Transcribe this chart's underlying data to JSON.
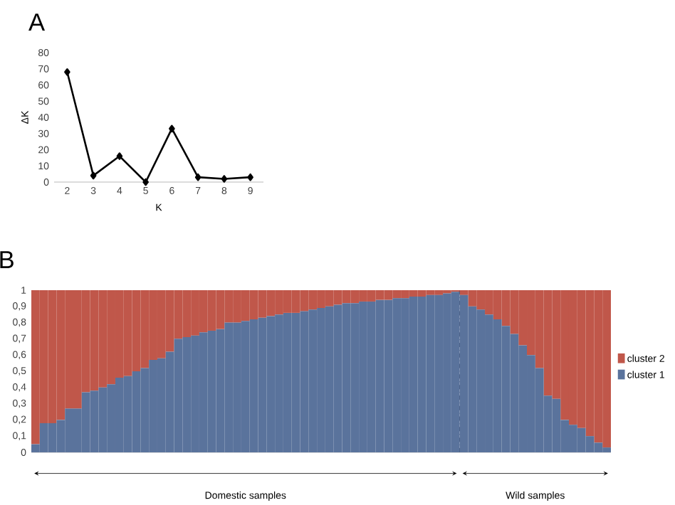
{
  "chart_data": [
    {
      "type": "line",
      "title": "A",
      "xlabel": "K",
      "ylabel": "ΔK",
      "x": [
        2,
        3,
        4,
        5,
        6,
        7,
        8,
        9
      ],
      "xlim": [
        1.5,
        9.5
      ],
      "xticks": [
        2,
        3,
        4,
        5,
        6,
        7,
        8,
        9
      ],
      "ylim": [
        0,
        80
      ],
      "yticks": [
        0,
        10,
        20,
        30,
        40,
        50,
        60,
        70,
        80
      ],
      "series": [
        {
          "color": "#000000",
          "values": [
            68,
            4,
            16,
            0,
            33,
            3,
            2,
            3
          ]
        }
      ],
      "marker": "diamond",
      "line_style": "solid",
      "grid": false
    },
    {
      "type": "bar",
      "title": "B",
      "stacked": true,
      "legend": "right",
      "grid": false,
      "categories": [
        null,
        null,
        null,
        null,
        null,
        null,
        null,
        null,
        null,
        null,
        null,
        null,
        null,
        null,
        null,
        null,
        null,
        null,
        null,
        null,
        null,
        null,
        null,
        null,
        null,
        null,
        null,
        null,
        null,
        null,
        null,
        null,
        null,
        null,
        null,
        null,
        null,
        null,
        null,
        null,
        null,
        null,
        null,
        null,
        null,
        null,
        null,
        null,
        null,
        null,
        null,
        null,
        null,
        null,
        null,
        null,
        null,
        null,
        null,
        null,
        null,
        null,
        null,
        null,
        null,
        null,
        null,
        null,
        null
      ],
      "ylim": [
        0,
        1
      ],
      "yticks": [
        0,
        {
          "value": 0.1,
          "label": "0,1"
        },
        {
          "value": 0.2,
          "label": "0,2"
        },
        {
          "value": 0.3,
          "label": "0,3"
        },
        {
          "value": 0.4,
          "label": "0,4"
        },
        {
          "value": 0.5,
          "label": "0,5"
        },
        {
          "value": 0.6,
          "label": "0,6"
        },
        {
          "value": 0.7,
          "label": "0,7"
        },
        {
          "value": 0.8,
          "label": "0,8"
        },
        {
          "value": 0.9,
          "label": "0,9"
        },
        1
      ],
      "series": [
        {
          "name": "cluster 1",
          "color": "#5a739c",
          "values": [
            0.05,
            0.18,
            0.18,
            0.2,
            0.27,
            0.27,
            0.37,
            0.38,
            0.4,
            0.42,
            0.46,
            0.47,
            0.5,
            0.52,
            0.57,
            0.58,
            0.62,
            0.7,
            0.71,
            0.72,
            0.74,
            0.75,
            0.76,
            0.8,
            0.8,
            0.81,
            0.82,
            0.83,
            0.84,
            0.85,
            0.86,
            0.86,
            0.87,
            0.88,
            0.89,
            0.9,
            0.91,
            0.92,
            0.92,
            0.93,
            0.93,
            0.94,
            0.94,
            0.95,
            0.95,
            0.96,
            0.96,
            0.97,
            0.97,
            0.98,
            0.99,
            0.97,
            0.9,
            0.88,
            0.85,
            0.82,
            0.78,
            0.73,
            0.66,
            0.6,
            0.52,
            0.35,
            0.33,
            0.2,
            0.17,
            0.15,
            0.1,
            0.06,
            0.03
          ]
        },
        {
          "name": "cluster 2",
          "color": "#c0574a",
          "values": [
            0.95,
            0.82,
            0.82,
            0.8,
            0.73,
            0.73,
            0.63,
            0.62,
            0.6,
            0.58,
            0.54,
            0.53,
            0.5,
            0.48,
            0.43,
            0.42,
            0.38,
            0.3,
            0.29,
            0.28,
            0.26,
            0.25,
            0.24,
            0.2,
            0.2,
            0.19,
            0.18,
            0.17,
            0.16,
            0.15,
            0.14,
            0.14,
            0.13,
            0.12,
            0.11,
            0.1,
            0.09,
            0.08,
            0.08,
            0.07,
            0.07,
            0.06,
            0.06,
            0.05,
            0.05,
            0.04,
            0.04,
            0.03,
            0.03,
            0.02,
            0.01,
            0.03,
            0.1,
            0.12,
            0.15,
            0.18,
            0.22,
            0.27,
            0.34,
            0.4,
            0.48,
            0.65,
            0.67,
            0.8,
            0.83,
            0.85,
            0.9,
            0.94,
            0.97
          ]
        }
      ],
      "annotations": [
        "Domestic samples",
        "Wild samples"
      ]
    }
  ]
}
